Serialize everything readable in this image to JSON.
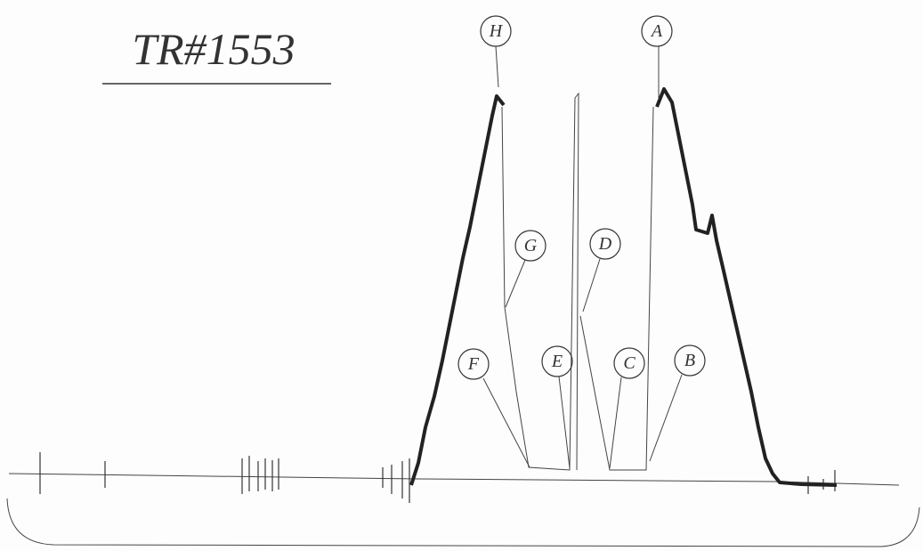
{
  "header": {
    "title": "TR#1553"
  },
  "labels": [
    "H",
    "A",
    "G",
    "D",
    "F",
    "E",
    "C",
    "B"
  ]
}
